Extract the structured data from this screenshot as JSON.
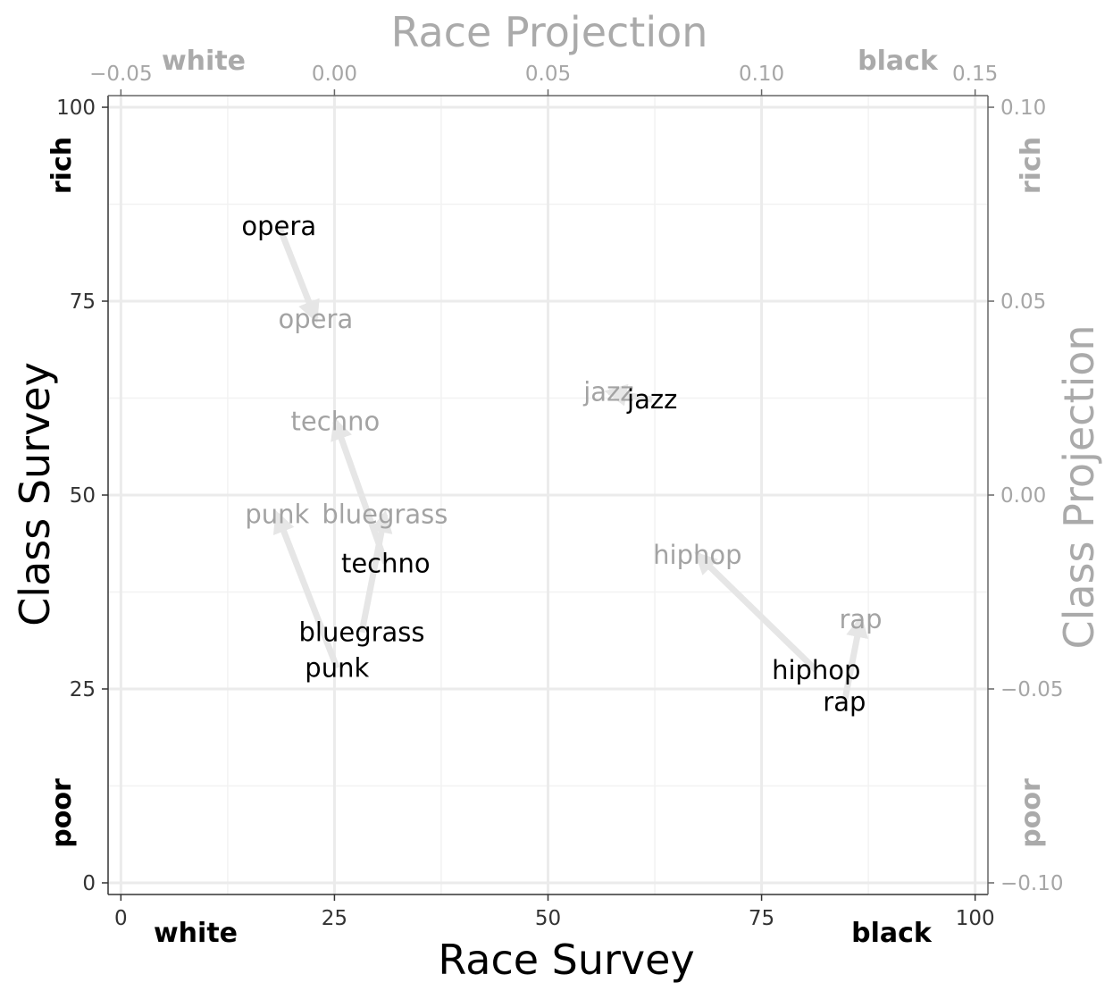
{
  "chart_data": {
    "type": "scatter",
    "title": "",
    "xlabel": "Race Survey",
    "ylabel": "Class Survey",
    "xlim": [
      -1.5,
      101.5
    ],
    "ylim": [
      -1.5,
      101.5
    ],
    "x_ticks": [
      "0",
      "25",
      "50",
      "75",
      "100"
    ],
    "y_ticks": [
      "0",
      "25",
      "50",
      "75",
      "100"
    ],
    "x_end_labels": {
      "low": "white",
      "high": "black"
    },
    "y_end_labels": {
      "low": "poor",
      "high": "rich"
    },
    "secondary_x_axis": {
      "label": "Race Projection",
      "ticks": [
        "−0.05",
        "0.00",
        "0.05",
        "0.10",
        "0.15"
      ],
      "end_labels": {
        "low": "white",
        "high": "black"
      }
    },
    "secondary_y_axis": {
      "label": "Class Projection",
      "ticks": [
        "−0.10",
        "−0.05",
        "0.00",
        "0.05",
        "0.10"
      ],
      "end_labels": {
        "low": "poor",
        "high": "rich"
      }
    },
    "arrow_color": "#e6e6e6",
    "grid": true,
    "points": [
      {
        "label": "opera",
        "survey": [
          18.5,
          84.7
        ],
        "projection": [
          22.8,
          72.7
        ]
      },
      {
        "label": "jazz",
        "survey": [
          62.2,
          62.3
        ],
        "projection": [
          57.1,
          63.3
        ]
      },
      {
        "label": "techno",
        "survey": [
          31.0,
          41.2
        ],
        "projection": [
          25.1,
          59.5
        ]
      },
      {
        "label": "bluegrass",
        "survey": [
          28.2,
          32.3
        ],
        "projection": [
          30.9,
          47.5
        ]
      },
      {
        "label": "punk",
        "survey": [
          25.3,
          27.7
        ],
        "projection": [
          18.3,
          47.5
        ]
      },
      {
        "label": "hiphop",
        "survey": [
          81.4,
          27.4
        ],
        "projection": [
          67.5,
          42.3
        ]
      },
      {
        "label": "rap",
        "survey": [
          84.7,
          23.3
        ],
        "projection": [
          86.6,
          34.0
        ]
      }
    ]
  }
}
